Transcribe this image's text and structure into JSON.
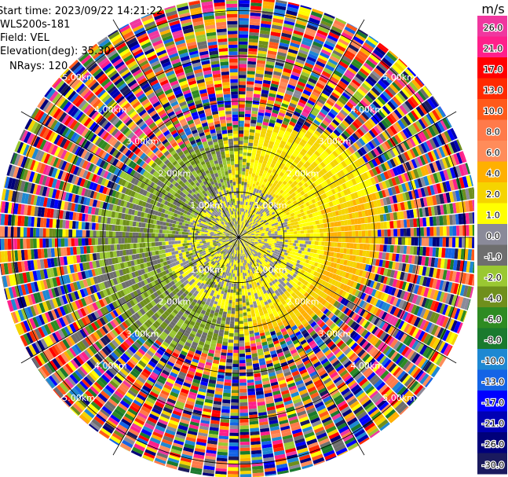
{
  "header": {
    "start_time": "Start time: 2023/09/22 14:21:22",
    "instrument": "WLS200s-181",
    "field": "Field: VEL",
    "elevation": "Elevation(deg): 35.30",
    "nrays": "NRays: 120"
  },
  "chart_data": {
    "type": "heatmap",
    "projection": "polar-ppi",
    "field": "VEL",
    "n_rays": 120,
    "range_rings_km": [
      1,
      2,
      3,
      4,
      5
    ],
    "range_ring_labels": [
      "1.00km",
      "2.00km",
      "3.00km",
      "4.00km",
      "5.00km"
    ],
    "colorbar": {
      "unit": "m/s",
      "range": [
        -30.0,
        26.0
      ],
      "ticks": [
        "26.0",
        "21.0",
        "17.0",
        "13.0",
        "10.0",
        "8.0",
        "6.0",
        "4.0",
        "2.0",
        "1.0",
        "0.0",
        "-1.0",
        "-2.0",
        "-4.0",
        "-6.0",
        "-8.0",
        "-10.0",
        "-13.0",
        "-17.0",
        "-21.0",
        "-26.0",
        "-30.0"
      ],
      "colors": [
        "#f0379f",
        "#ff1f8a",
        "#ff0000",
        "#ff2a00",
        "#ff5a1a",
        "#ff7a4a",
        "#ff8c5a",
        "#ffb000",
        "#f5d400",
        "#ffff00",
        "#8a8a99",
        "#6e6e6e",
        "#9ac832",
        "#6f8f1c",
        "#2e8b22",
        "#1a7a2e",
        "#1e88d2",
        "#1464e6",
        "#0000ff",
        "#0000b4",
        "#00007a",
        "#1a1a5e"
      ]
    }
  }
}
